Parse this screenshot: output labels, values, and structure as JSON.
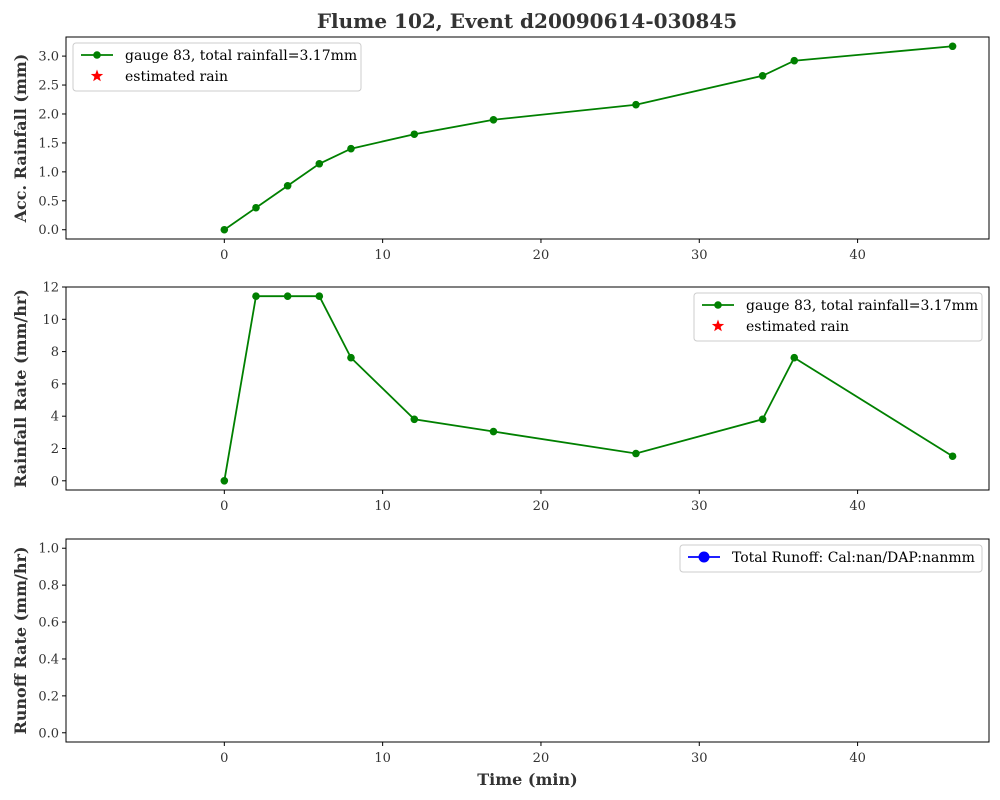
{
  "title": "Flume 102, Event d20090614-030845",
  "chart_data": [
    {
      "type": "line",
      "ylabel": "Acc. Rainfall (mm)",
      "xlim": [
        -10,
        48.3
      ],
      "ylim": [
        -0.16,
        3.33
      ],
      "xticks": [
        0,
        10,
        20,
        30,
        40
      ],
      "yticks": [
        0.0,
        0.5,
        1.0,
        1.5,
        2.0,
        2.5,
        3.0
      ],
      "ytick_labels": [
        "0.0",
        "0.5",
        "1.0",
        "1.5",
        "2.0",
        "2.5",
        "3.0"
      ],
      "legend_loc": "upper-left",
      "legend": [
        {
          "label": "gauge 83, total rainfall=3.17mm",
          "marker": "circle",
          "color": "#008000",
          "line": true
        },
        {
          "label": "estimated rain",
          "marker": "star",
          "color": "#ff0000",
          "line": false
        }
      ],
      "series": [
        {
          "color": "#008000",
          "x": [
            0,
            2,
            4,
            6,
            8,
            12,
            17,
            26,
            34,
            36,
            46
          ],
          "y": [
            0.0,
            0.38,
            0.76,
            1.14,
            1.4,
            1.65,
            1.9,
            2.16,
            2.66,
            2.92,
            3.17
          ]
        }
      ]
    },
    {
      "type": "line",
      "ylabel": "Rainfall Rate (mm/hr)",
      "xlim": [
        -10,
        48.3
      ],
      "ylim": [
        -0.57,
        12.0
      ],
      "xticks": [
        0,
        10,
        20,
        30,
        40
      ],
      "yticks": [
        0,
        2,
        4,
        6,
        8,
        10,
        12
      ],
      "ytick_labels": [
        "0",
        "2",
        "4",
        "6",
        "8",
        "10",
        "12"
      ],
      "legend_loc": "upper-right",
      "legend": [
        {
          "label": "gauge 83, total rainfall=3.17mm",
          "marker": "circle",
          "color": "#008000",
          "line": true
        },
        {
          "label": "estimated rain",
          "marker": "star",
          "color": "#ff0000",
          "line": false
        }
      ],
      "series": [
        {
          "color": "#008000",
          "x": [
            0,
            2,
            4,
            6,
            8,
            12,
            17,
            26,
            34,
            36,
            46
          ],
          "y": [
            0.0,
            11.43,
            11.43,
            11.43,
            7.62,
            3.81,
            3.05,
            1.69,
            3.81,
            7.62,
            1.52
          ]
        }
      ]
    },
    {
      "type": "line",
      "ylabel": "Runoff Rate (mm/hr)",
      "xlabel": "Time (min)",
      "xlim": [
        -10,
        48.3
      ],
      "ylim": [
        -0.05,
        1.05
      ],
      "xticks": [
        0,
        10,
        20,
        30,
        40
      ],
      "yticks": [
        0.0,
        0.2,
        0.4,
        0.6,
        0.8,
        1.0
      ],
      "ytick_labels": [
        "0.0",
        "0.2",
        "0.4",
        "0.6",
        "0.8",
        "1.0"
      ],
      "legend_loc": "upper-right",
      "legend": [
        {
          "label": "Total Runoff: Cal:nan/DAP:nanmm",
          "marker": "circle",
          "color": "#0000ff",
          "line": true
        }
      ],
      "series": []
    }
  ]
}
